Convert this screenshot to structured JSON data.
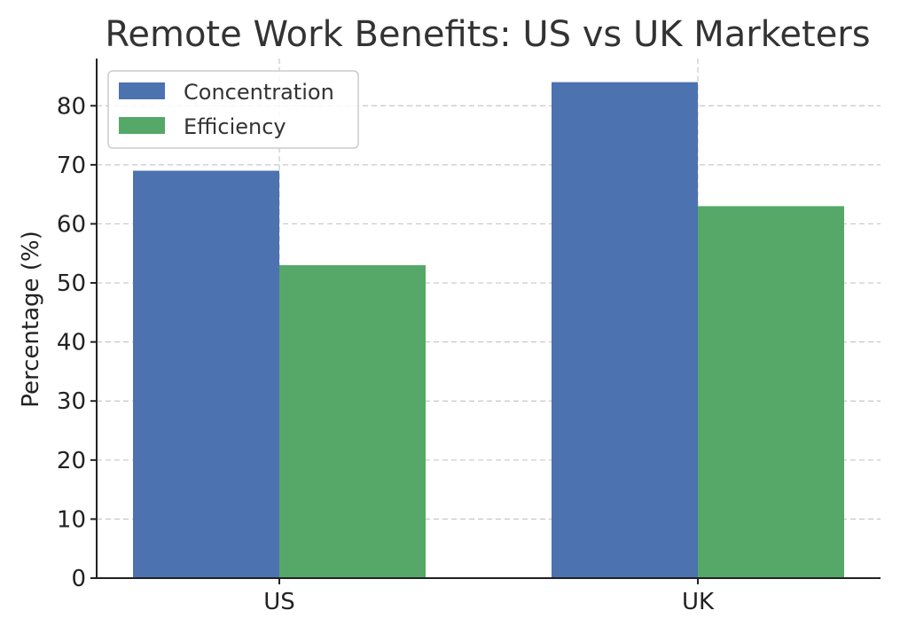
{
  "chart_data": {
    "type": "bar",
    "title": "Remote Work Benefits: US vs UK Marketers",
    "xlabel": "",
    "ylabel": "Percentage (%)",
    "categories": [
      "US",
      "UK"
    ],
    "series": [
      {
        "name": "Concentration",
        "values": [
          69,
          84
        ],
        "color": "#4c72b0"
      },
      {
        "name": "Efficiency",
        "values": [
          53,
          63
        ],
        "color": "#55a868"
      }
    ],
    "yticks": [
      0,
      10,
      20,
      30,
      40,
      50,
      60,
      70,
      80
    ],
    "ylim": [
      0,
      88
    ],
    "grid": true,
    "legend_position": "top-left"
  }
}
